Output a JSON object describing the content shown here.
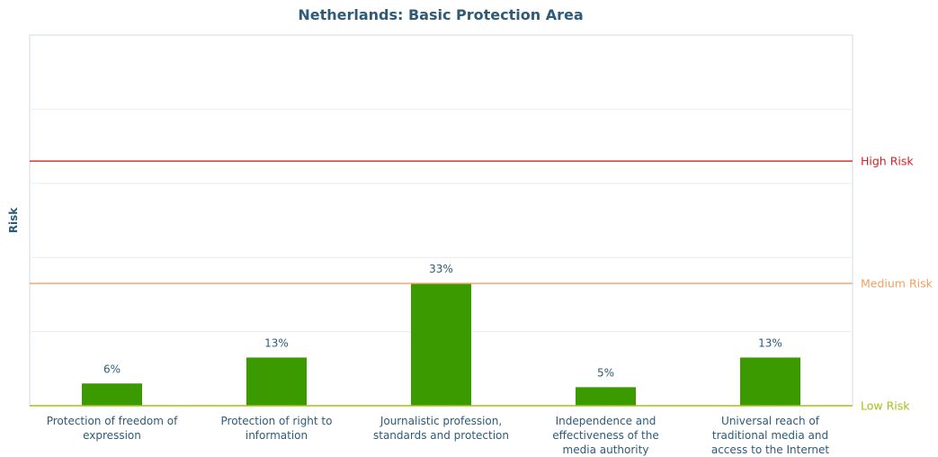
{
  "chart_data": {
    "type": "bar",
    "title": "Netherlands: Basic Protection Area",
    "ylabel": "Risk",
    "xlabel": "",
    "ylim": [
      0,
      100
    ],
    "grid": true,
    "categories": [
      [
        "Protection of freedom of",
        "expression"
      ],
      [
        "Protection of right to",
        "information"
      ],
      [
        "Journalistic profession,",
        "standards and protection"
      ],
      [
        "Independence and",
        "effectiveness of the",
        "media authority"
      ],
      [
        "Universal reach of",
        "traditional media and",
        "access to the Internet"
      ]
    ],
    "values": [
      6,
      13,
      33,
      5,
      13
    ],
    "data_labels": [
      "6%",
      "13%",
      "33%",
      "5%",
      "13%"
    ],
    "bar_color": "#3a9a00",
    "reference_lines": [
      {
        "label": "High Risk",
        "value": 66,
        "color": "#d42020"
      },
      {
        "label": "Medium Risk",
        "value": 33,
        "color": "#f0a060"
      },
      {
        "label": "Low Risk",
        "value": 0,
        "color": "#a6bf1a"
      }
    ]
  }
}
